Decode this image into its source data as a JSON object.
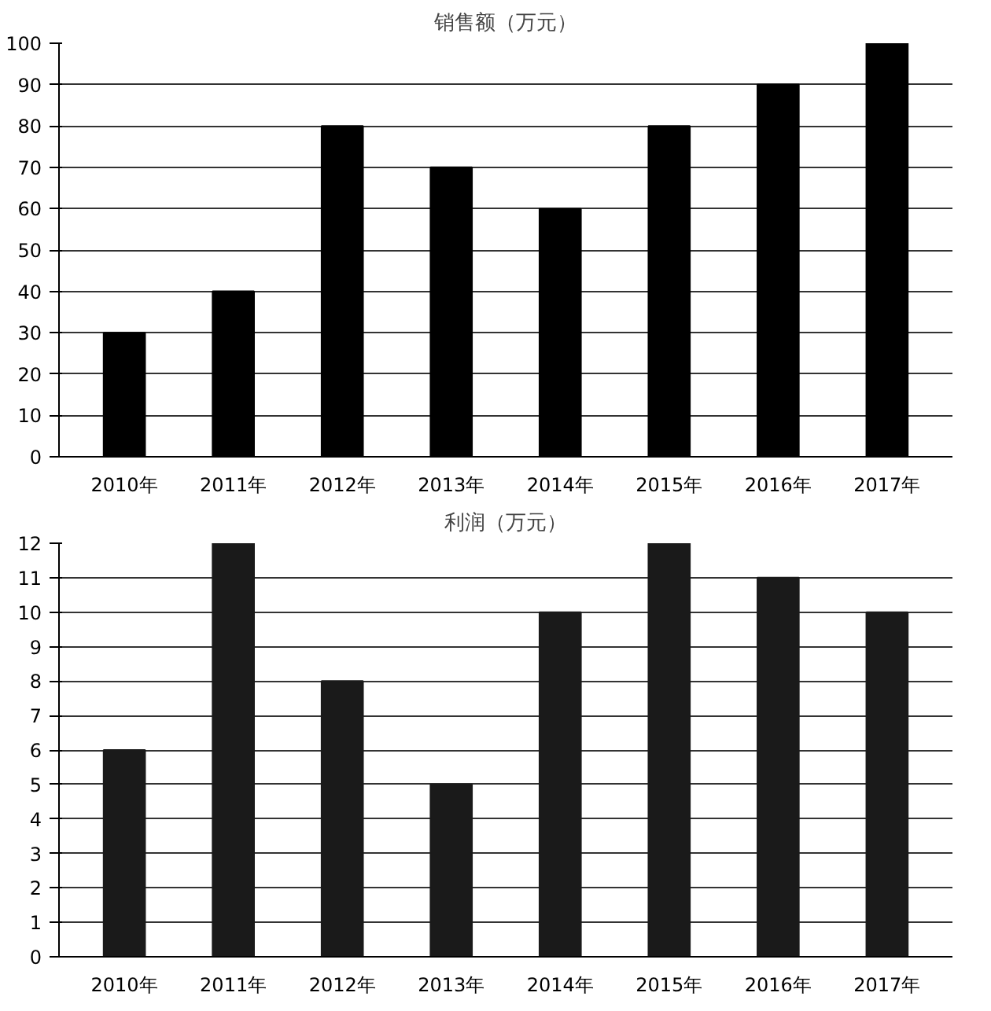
{
  "chart_data": [
    {
      "type": "bar",
      "title": "销售额（万元）",
      "categories": [
        "2010年",
        "2011年",
        "2012年",
        "2013年",
        "2014年",
        "2015年",
        "2016年",
        "2017年"
      ],
      "values": [
        30,
        40,
        80,
        70,
        60,
        80,
        90,
        100
      ],
      "color": "#000000",
      "ylim": [
        0,
        100
      ],
      "yticks": [
        0,
        10,
        20,
        30,
        40,
        50,
        60,
        70,
        80,
        90,
        100
      ],
      "grid": "y"
    },
    {
      "type": "bar",
      "title": "利润（万元）",
      "categories": [
        "2010年",
        "2011年",
        "2012年",
        "2013年",
        "2014年",
        "2015年",
        "2016年",
        "2017年"
      ],
      "values": [
        6,
        12,
        8,
        5,
        10,
        12,
        11,
        10
      ],
      "color": "#1a1a1a",
      "ylim": [
        0,
        12
      ],
      "yticks": [
        0,
        1,
        2,
        3,
        4,
        5,
        6,
        7,
        8,
        9,
        10,
        11,
        12
      ],
      "grid": "y"
    }
  ]
}
